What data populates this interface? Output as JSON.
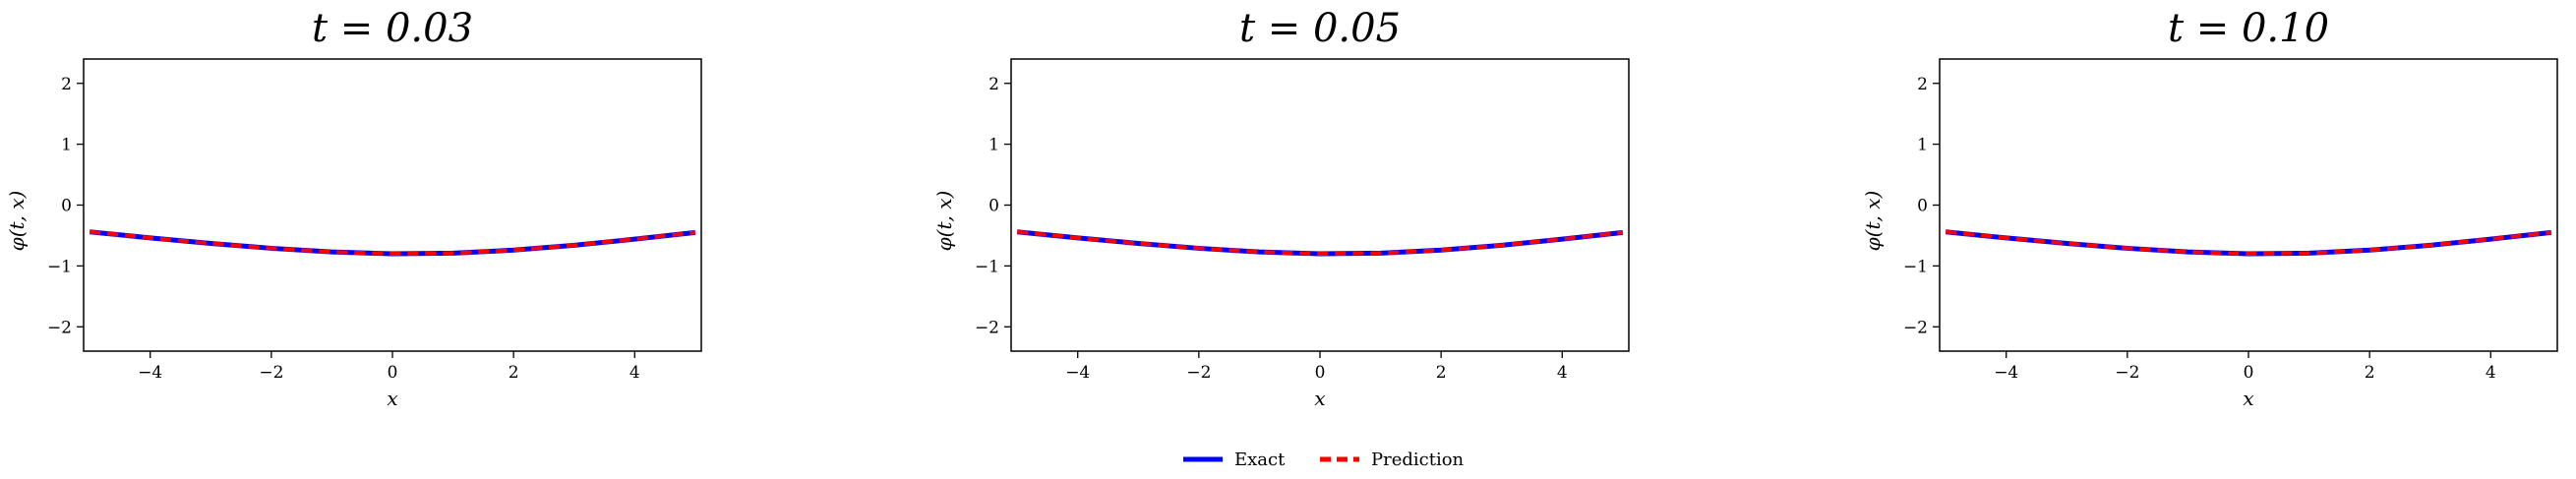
{
  "chart_data": [
    {
      "type": "line",
      "title": "t = 0.03",
      "xlabel": "x",
      "ylabel": "φ(t, x)",
      "xlim": [
        -5.1,
        5.1
      ],
      "ylim": [
        -2.4,
        2.4
      ],
      "xticks": [
        -4,
        -2,
        0,
        2,
        4
      ],
      "yticks": [
        -2,
        -1,
        0,
        1,
        2
      ],
      "x": [
        -5,
        -4,
        -3,
        -2,
        -1,
        0,
        1,
        2,
        3,
        4,
        5
      ],
      "series": [
        {
          "name": "Exact",
          "values": [
            -0.44,
            -0.54,
            -0.63,
            -0.71,
            -0.77,
            -0.8,
            -0.79,
            -0.74,
            -0.66,
            -0.56,
            -0.45
          ]
        },
        {
          "name": "Prediction",
          "values": [
            -0.44,
            -0.54,
            -0.63,
            -0.71,
            -0.77,
            -0.8,
            -0.79,
            -0.74,
            -0.66,
            -0.56,
            -0.45
          ]
        }
      ]
    },
    {
      "type": "line",
      "title": "t = 0.05",
      "xlabel": "x",
      "ylabel": "φ(t, x)",
      "xlim": [
        -5.1,
        5.1
      ],
      "ylim": [
        -2.4,
        2.4
      ],
      "xticks": [
        -4,
        -2,
        0,
        2,
        4
      ],
      "yticks": [
        -2,
        -1,
        0,
        1,
        2
      ],
      "x": [
        -5,
        -4,
        -3,
        -2,
        -1,
        0,
        1,
        2,
        3,
        4,
        5
      ],
      "series": [
        {
          "name": "Exact",
          "values": [
            -0.44,
            -0.54,
            -0.63,
            -0.71,
            -0.77,
            -0.8,
            -0.79,
            -0.74,
            -0.66,
            -0.56,
            -0.45
          ]
        },
        {
          "name": "Prediction",
          "values": [
            -0.44,
            -0.54,
            -0.63,
            -0.71,
            -0.77,
            -0.8,
            -0.79,
            -0.74,
            -0.66,
            -0.56,
            -0.45
          ]
        }
      ]
    },
    {
      "type": "line",
      "title": "t = 0.10",
      "xlabel": "x",
      "ylabel": "φ(t, x)",
      "xlim": [
        -5.1,
        5.1
      ],
      "ylim": [
        -2.4,
        2.4
      ],
      "xticks": [
        -4,
        -2,
        0,
        2,
        4
      ],
      "yticks": [
        -2,
        -1,
        0,
        1,
        2
      ],
      "x": [
        -5,
        -4,
        -3,
        -2,
        -1,
        0,
        1,
        2,
        3,
        4,
        5
      ],
      "series": [
        {
          "name": "Exact",
          "values": [
            -0.44,
            -0.54,
            -0.63,
            -0.71,
            -0.77,
            -0.8,
            -0.79,
            -0.74,
            -0.66,
            -0.56,
            -0.45
          ]
        },
        {
          "name": "Prediction",
          "values": [
            -0.44,
            -0.54,
            -0.63,
            -0.71,
            -0.77,
            -0.8,
            -0.79,
            -0.74,
            -0.66,
            -0.56,
            -0.45
          ]
        }
      ]
    }
  ],
  "legend": {
    "placement": "bottom-center",
    "items": [
      {
        "label": "Exact",
        "color": "#0000ff",
        "style": "solid"
      },
      {
        "label": "Prediction",
        "color": "#ff0000",
        "style": "dashed"
      }
    ]
  }
}
